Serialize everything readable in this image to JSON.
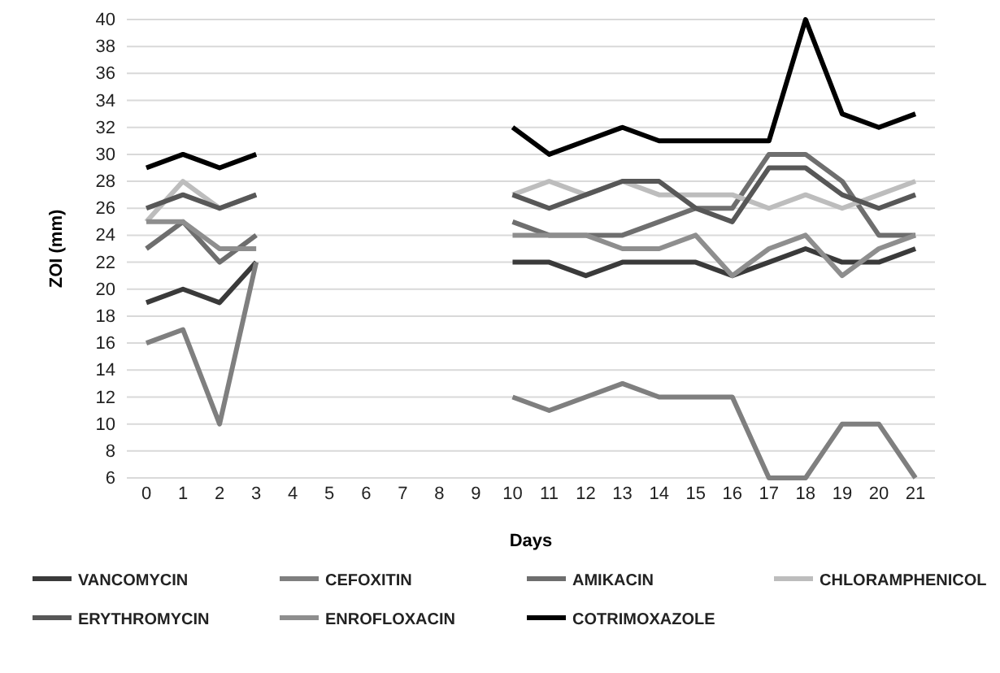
{
  "chart_data": {
    "type": "line",
    "xlabel": "Days",
    "ylabel": "ZOI (mm)",
    "categories": [
      "0",
      "1",
      "2",
      "3",
      "4",
      "5",
      "6",
      "7",
      "8",
      "9",
      "10",
      "11",
      "12",
      "13",
      "14",
      "15",
      "16",
      "17",
      "18",
      "19",
      "20",
      "21"
    ],
    "ylim": [
      6,
      40
    ],
    "yticks": [
      6,
      8,
      10,
      12,
      14,
      16,
      18,
      20,
      22,
      24,
      26,
      28,
      30,
      32,
      34,
      36,
      38,
      40
    ],
    "grid": "y",
    "legend": "bottom",
    "marker": "none",
    "line_style": "solid",
    "series": [
      {
        "name": "VANCOMYCIN",
        "color": "#3a3a3a",
        "values": [
          19,
          20,
          19,
          22,
          null,
          null,
          null,
          null,
          null,
          null,
          22,
          22,
          21,
          22,
          22,
          22,
          21,
          22,
          23,
          22,
          22,
          23
        ]
      },
      {
        "name": "CEFOXITIN",
        "color": "#7f7f7f",
        "values": [
          16,
          17,
          10,
          22,
          null,
          null,
          null,
          null,
          null,
          null,
          12,
          11,
          12,
          13,
          12,
          12,
          12,
          6,
          6,
          10,
          10,
          6
        ]
      },
      {
        "name": "AMIKACIN",
        "color": "#6e6e6e",
        "values": [
          23,
          25,
          22,
          24,
          null,
          null,
          null,
          null,
          null,
          null,
          25,
          24,
          24,
          24,
          25,
          26,
          26,
          30,
          30,
          28,
          24,
          24
        ]
      },
      {
        "name": "CHLORAMPHENICOL",
        "color": "#bdbdbd",
        "values": [
          25,
          28,
          26,
          27,
          null,
          null,
          null,
          null,
          null,
          null,
          27,
          28,
          27,
          28,
          27,
          27,
          27,
          26,
          27,
          26,
          27,
          28
        ]
      },
      {
        "name": "ERYTHROMYCIN",
        "color": "#575757",
        "values": [
          26,
          27,
          26,
          27,
          null,
          null,
          null,
          null,
          null,
          null,
          27,
          26,
          27,
          28,
          28,
          26,
          25,
          29,
          29,
          27,
          26,
          27
        ]
      },
      {
        "name": "ENROFLOXACIN",
        "color": "#8e8e8e",
        "values": [
          25,
          25,
          23,
          23,
          null,
          null,
          null,
          null,
          null,
          null,
          24,
          24,
          24,
          23,
          23,
          24,
          21,
          23,
          24,
          21,
          23,
          24
        ]
      },
      {
        "name": "COTRIMOXAZOLE",
        "color": "#000000",
        "values": [
          29,
          30,
          29,
          30,
          null,
          null,
          null,
          null,
          null,
          null,
          32,
          30,
          31,
          32,
          31,
          31,
          31,
          31,
          40,
          33,
          32,
          33
        ]
      }
    ]
  }
}
